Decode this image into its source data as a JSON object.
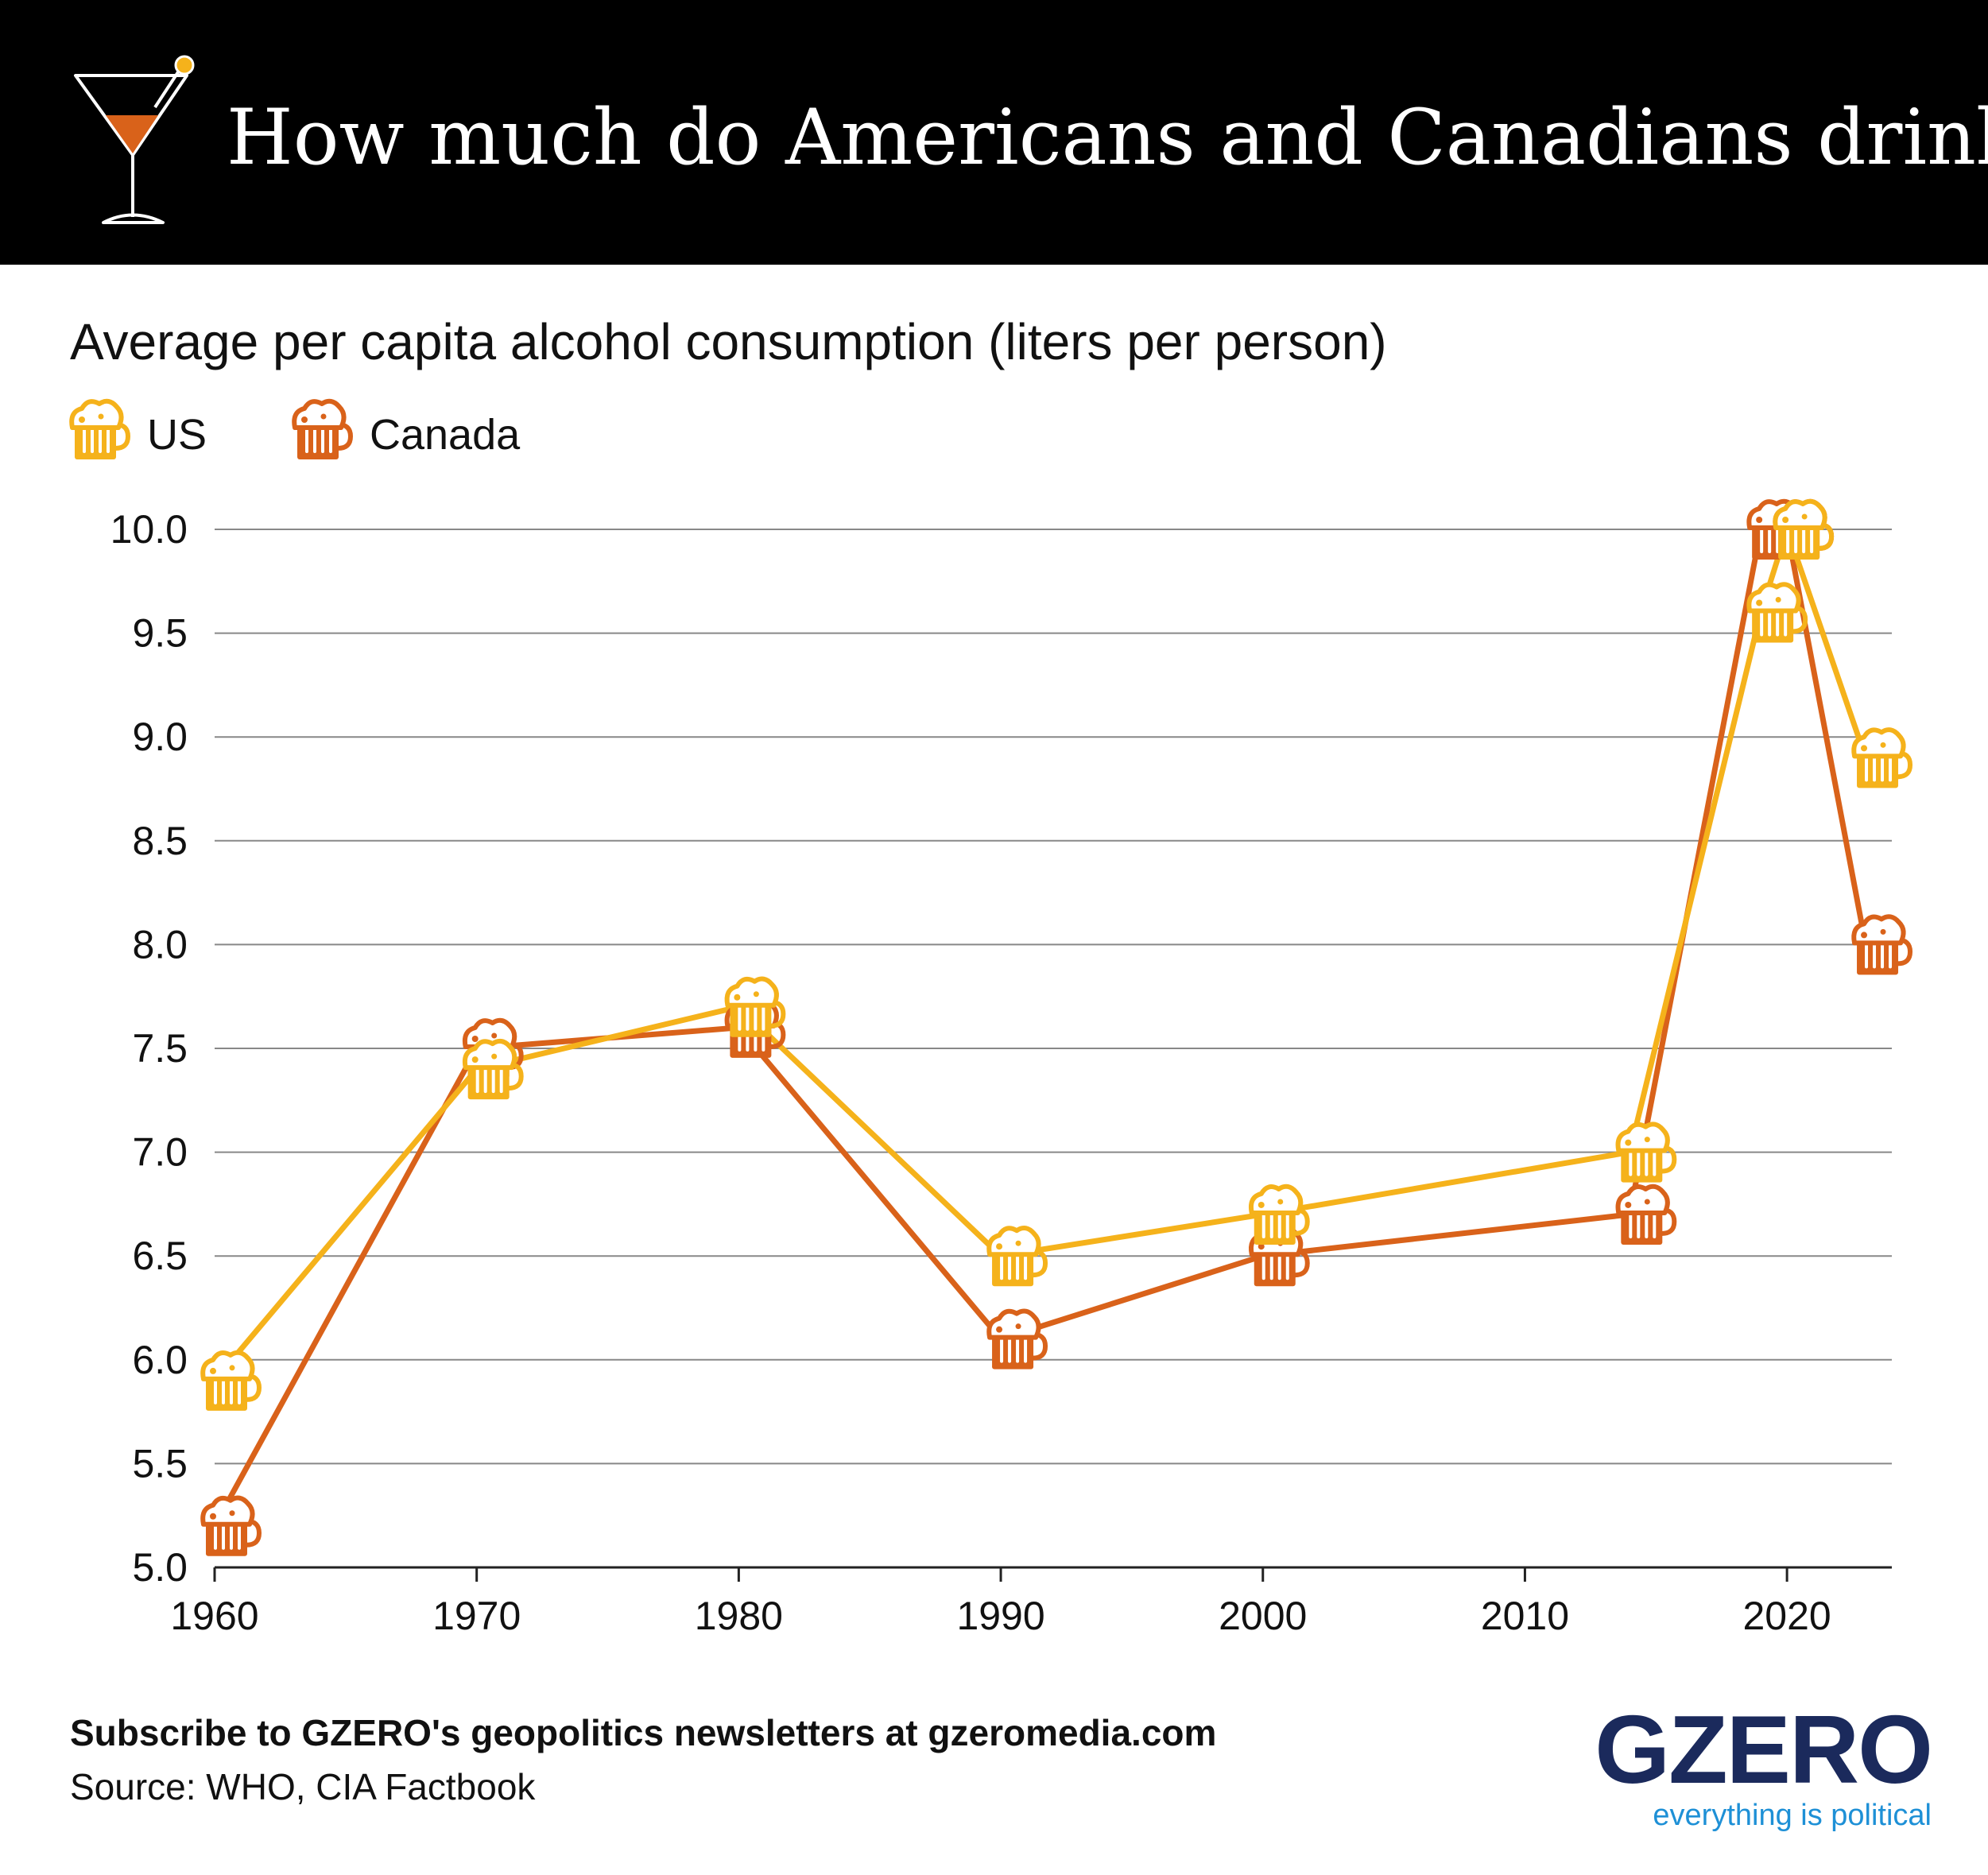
{
  "header": {
    "title": "How much do Americans and Canadians drink?",
    "icon": "martini-glass-icon"
  },
  "colors": {
    "header_bg": "#000000",
    "us": "#F5B21B",
    "canada": "#D9621A",
    "gridline": "#888888",
    "brand_navy": "#1B2A5C",
    "brand_blue": "#1E90D6"
  },
  "legend": {
    "us_label": "US",
    "canada_label": "Canada",
    "marker_icon": "beer-mug-icon"
  },
  "chart_data": {
    "type": "line",
    "title": "How much do Americans and Canadians drink?",
    "subtitle": "Average per capita alcohol consumption (liters per person)",
    "xlabel": "",
    "ylabel": "",
    "x_ticks": [
      1960,
      1970,
      1980,
      1990,
      2000,
      2010,
      2020
    ],
    "y_ticks": [
      "5.0",
      "5.5",
      "6.0",
      "6.5",
      "7.0",
      "7.5",
      "8.0",
      "8.5",
      "9.0",
      "9.5",
      "10.0"
    ],
    "xlim": [
      1960,
      2024
    ],
    "ylim": [
      5.0,
      10.0
    ],
    "grid": "horizontal",
    "legend_position": "top-left",
    "series": [
      {
        "name": "US",
        "color": "#F5B21B",
        "x": [
          1960,
          1970,
          1980,
          1990,
          2000,
          2014,
          2019,
          2020,
          2023
        ],
        "y": [
          5.9,
          7.4,
          7.7,
          6.5,
          6.7,
          7.0,
          9.6,
          10.0,
          8.9
        ]
      },
      {
        "name": "Canada",
        "color": "#D9621A",
        "x": [
          1960,
          1970,
          1980,
          1990,
          2000,
          2014,
          2019,
          2020,
          2023
        ],
        "y": [
          5.2,
          7.5,
          7.6,
          6.1,
          6.5,
          6.7,
          10.0,
          10.0,
          8.0
        ]
      }
    ]
  },
  "footer": {
    "subscribe": "Subscribe to GZERO's geopolitics newsletters at gzeromedia.com",
    "source": "Source: WHO, CIA Factbook"
  },
  "brand": {
    "name": "GZERO",
    "tagline": "everything is political"
  }
}
